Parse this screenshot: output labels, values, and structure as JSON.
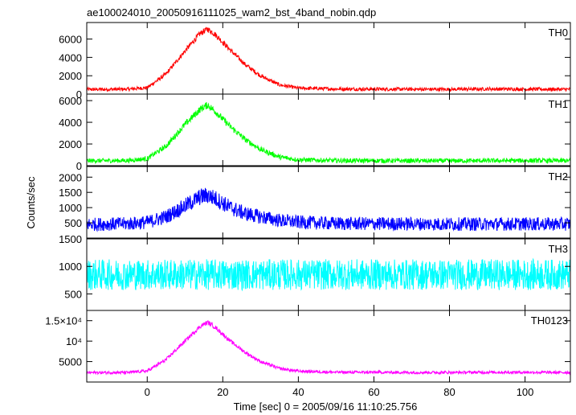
{
  "chart_data": {
    "type": "line",
    "title": "ae100024010_20050916111025_wam2_bst_4band_nobin.qdp",
    "xlabel": "Time [sec] 0 = 2005/09/16 11:10:25.756",
    "ylabel": "Counts/sec",
    "xlim": [
      -16,
      112
    ],
    "x_ticks": [
      0,
      20,
      40,
      60,
      80,
      100
    ],
    "panels": [
      {
        "name": "TH0",
        "color": "#ff0000",
        "ylim": [
          0,
          7800
        ],
        "y_ticks": [
          0,
          2000,
          4000,
          6000
        ],
        "y_tick_labels": [
          "0",
          "2000",
          "4000",
          "6000"
        ],
        "x": [
          -16,
          -10,
          -5,
          0,
          5,
          10,
          14,
          16,
          18,
          22,
          26,
          30,
          35,
          40,
          50,
          60,
          70,
          80,
          90,
          100,
          112
        ],
        "y": [
          500,
          520,
          540,
          700,
          2200,
          4700,
          6600,
          7100,
          6500,
          4800,
          3200,
          2000,
          1000,
          650,
          560,
          540,
          530,
          520,
          560,
          540,
          520
        ],
        "noise": 180
      },
      {
        "name": "TH1",
        "color": "#00ff00",
        "ylim": [
          0,
          6600
        ],
        "y_ticks": [
          0,
          2000,
          4000,
          6000
        ],
        "y_tick_labels": [
          "0",
          "2000",
          "4000",
          "6000"
        ],
        "x": [
          -16,
          -10,
          -5,
          0,
          5,
          10,
          14,
          16,
          18,
          22,
          26,
          30,
          35,
          40,
          50,
          60,
          70,
          80,
          90,
          100,
          112
        ],
        "y": [
          450,
          460,
          480,
          650,
          1800,
          3800,
          5200,
          5600,
          5000,
          3600,
          2400,
          1500,
          800,
          550,
          470,
          460,
          450,
          450,
          460,
          470,
          450
        ],
        "noise": 200
      },
      {
        "name": "TH2",
        "color": "#0000ff",
        "ylim": [
          0,
          2350
        ],
        "y_ticks": [
          500,
          1000,
          1500,
          2000
        ],
        "y_tick_labels": [
          "500",
          "1000",
          "1500",
          "2000"
        ],
        "x": [
          -16,
          -10,
          -5,
          0,
          5,
          10,
          14,
          16,
          18,
          22,
          26,
          30,
          35,
          40,
          50,
          60,
          70,
          80,
          90,
          100,
          112
        ],
        "y": [
          450,
          460,
          470,
          520,
          700,
          1050,
          1350,
          1400,
          1300,
          1000,
          800,
          700,
          580,
          520,
          480,
          470,
          465,
          460,
          460,
          465,
          460
        ],
        "noise": 190
      },
      {
        "name": "TH3",
        "color": "#00ffff",
        "ylim": [
          200,
          1500
        ],
        "y_ticks": [
          500,
          1000,
          1500
        ],
        "y_tick_labels": [
          "500",
          "1000",
          "1500"
        ],
        "x": [
          -16,
          0,
          20,
          40,
          60,
          80,
          100,
          112
        ],
        "y": [
          850,
          850,
          850,
          850,
          850,
          850,
          850,
          850
        ],
        "noise": 190
      },
      {
        "name": "TH0123",
        "color": "#ff00ff",
        "ylim": [
          0,
          17500
        ],
        "y_ticks": [
          5000,
          10000,
          15000
        ],
        "y_tick_labels": [
          "5000",
          "10⁴",
          "1.5×10⁴"
        ],
        "x": [
          -16,
          -10,
          -5,
          0,
          5,
          10,
          14,
          16,
          18,
          22,
          26,
          30,
          35,
          40,
          50,
          60,
          70,
          80,
          90,
          100,
          112
        ],
        "y": [
          2300,
          2320,
          2350,
          2700,
          5500,
          10000,
          13600,
          14600,
          13400,
          10000,
          7200,
          5000,
          3300,
          2650,
          2400,
          2370,
          2350,
          2340,
          2380,
          2370,
          2330
        ],
        "noise": 320
      }
    ]
  }
}
